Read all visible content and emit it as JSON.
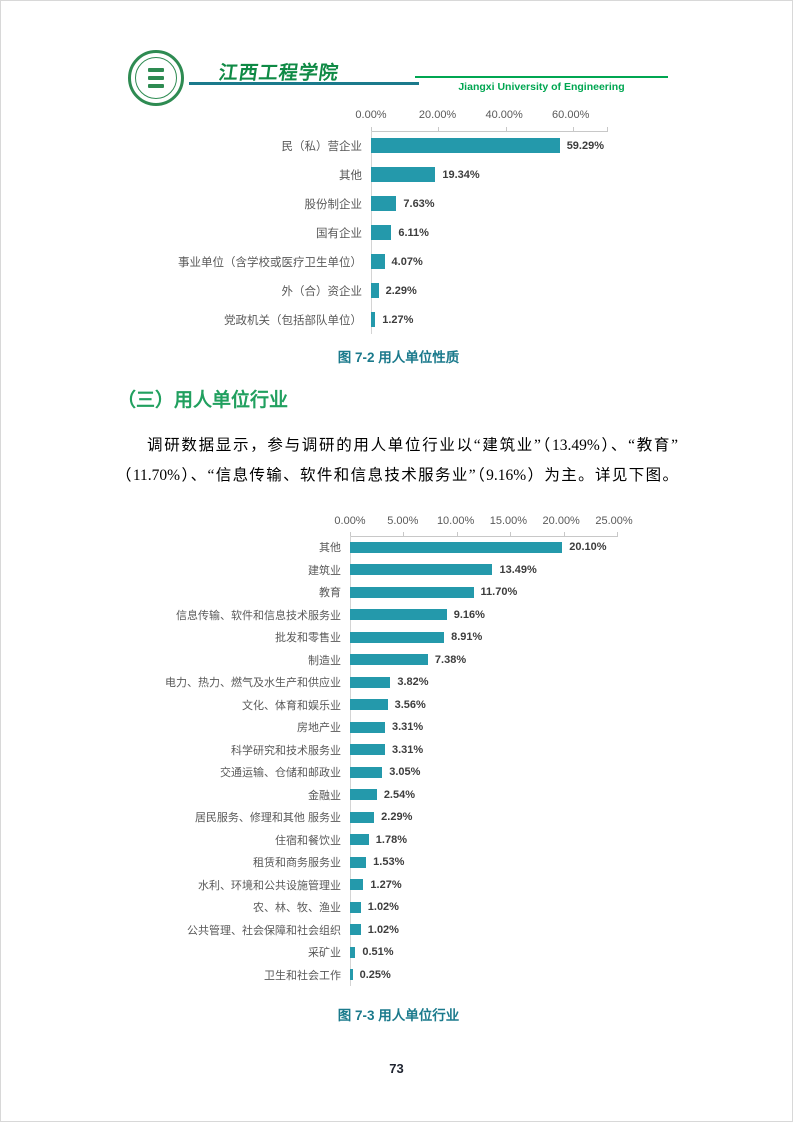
{
  "header": {
    "title_cn": "江西工程学院",
    "title_en": "Jiangxi University of Engineering",
    "colors": {
      "teal_rule": "#1b7a8c",
      "green_rule": "#00a651",
      "green_text": "#00a651"
    }
  },
  "section": {
    "heading": "（三）用人单位行业",
    "paragraph_lines": [
      "调研数据显示，参与调研的用人单位行业以“建筑业”（13.49%）、“教育”",
      "（11.70%）、“信息传输、软件和信息技术服务业”（9.16%）为主。详见下图。"
    ]
  },
  "chart_data": [
    {
      "type": "bar",
      "orientation": "horizontal",
      "title": "图 7-2 用人单位性质",
      "x_ticks": [
        0,
        20,
        40,
        60
      ],
      "x_tick_labels": [
        "0.00%",
        "20.00%",
        "40.00%",
        "60.00%"
      ],
      "x_max": 70,
      "grid": false,
      "legend": "none",
      "bar_color": "#2499ab",
      "categories": [
        "民（私）营企业",
        "其他",
        "股份制企业",
        "国有企业",
        "事业单位（含学校或医疗卫生单位）",
        "外（合）资企业",
        "党政机关（包括部队单位）"
      ],
      "values": [
        59.29,
        19.34,
        7.63,
        6.11,
        4.07,
        2.29,
        1.27
      ],
      "value_labels": [
        "59.29%",
        "19.34%",
        "7.63%",
        "6.11%",
        "4.07%",
        "2.29%",
        "1.27%"
      ]
    },
    {
      "type": "bar",
      "orientation": "horizontal",
      "title": "图 7-3 用人单位行业",
      "x_ticks": [
        0,
        5,
        10,
        15,
        20,
        25
      ],
      "x_tick_labels": [
        "0.00%",
        "5.00%",
        "10.00%",
        "15.00%",
        "20.00%",
        "25.00%"
      ],
      "x_max": 25,
      "grid": false,
      "legend": "none",
      "bar_color": "#2499ab",
      "categories": [
        "其他",
        "建筑业",
        "教育",
        "信息传输、软件和信息技术服务业",
        "批发和零售业",
        "制造业",
        "电力、热力、燃气及水生产和供应业",
        "文化、体育和娱乐业",
        "房地产业",
        "科学研究和技术服务业",
        "交通运输、仓储和邮政业",
        "金融业",
        "居民服务、修理和其他 服务业",
        "住宿和餐饮业",
        "租赁和商务服务业",
        "水利、环境和公共设施管理业",
        "农、林、牧、渔业",
        "公共管理、社会保障和社会组织",
        "采矿业",
        "卫生和社会工作"
      ],
      "values": [
        20.1,
        13.49,
        11.7,
        9.16,
        8.91,
        7.38,
        3.82,
        3.56,
        3.31,
        3.31,
        3.05,
        2.54,
        2.29,
        1.78,
        1.53,
        1.27,
        1.02,
        1.02,
        0.51,
        0.25
      ],
      "value_labels": [
        "20.10%",
        "13.49%",
        "11.70%",
        "9.16%",
        "8.91%",
        "7.38%",
        "3.82%",
        "3.56%",
        "3.31%",
        "3.31%",
        "3.05%",
        "2.54%",
        "2.29%",
        "1.78%",
        "1.53%",
        "1.27%",
        "1.02%",
        "1.02%",
        "0.51%",
        "0.25%"
      ]
    }
  ],
  "footer": {
    "page_number": "73"
  }
}
